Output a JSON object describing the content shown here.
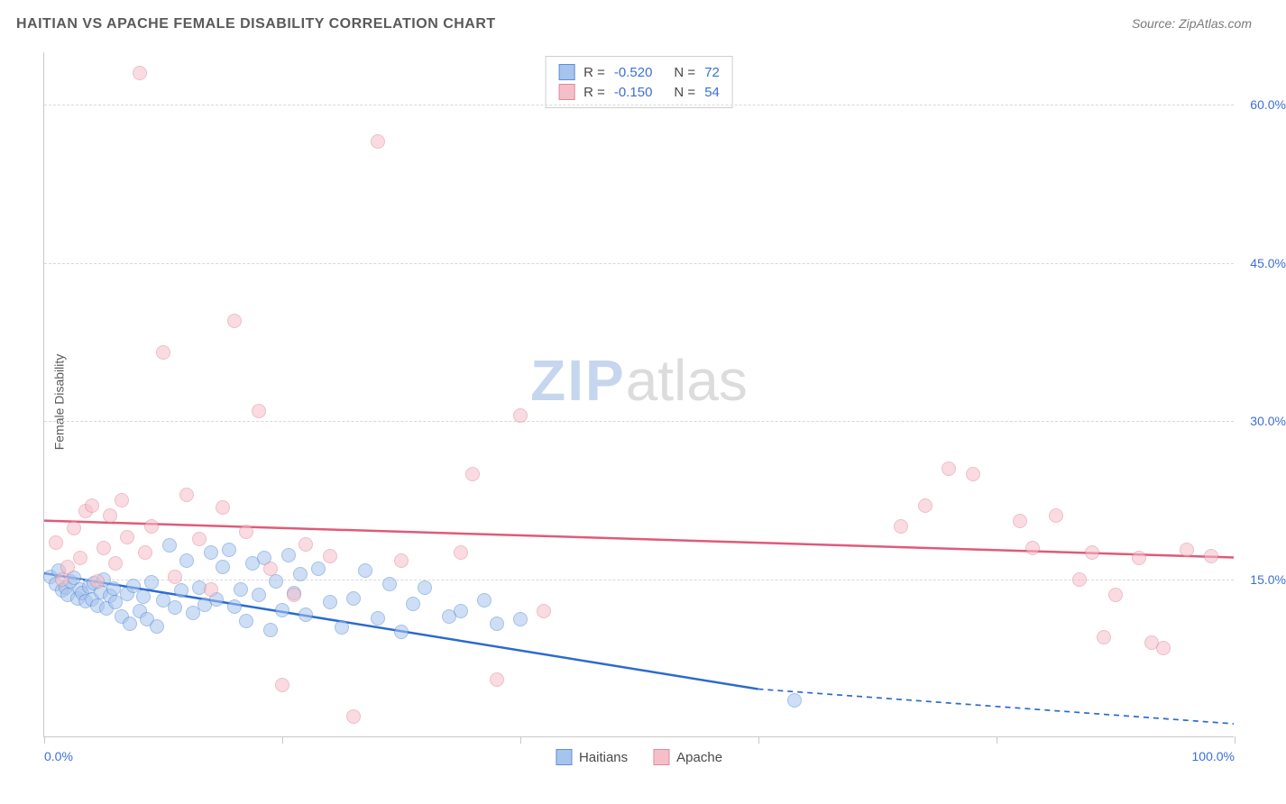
{
  "title": "HAITIAN VS APACHE FEMALE DISABILITY CORRELATION CHART",
  "source": "Source: ZipAtlas.com",
  "y_axis_label": "Female Disability",
  "watermark": {
    "part1": "ZIP",
    "part2": "atlas"
  },
  "chart": {
    "type": "scatter",
    "xlim": [
      0,
      100
    ],
    "ylim": [
      0,
      65
    ],
    "x_ticks": [
      0,
      20,
      40,
      60,
      80,
      100
    ],
    "x_tick_labels": [
      "0.0%",
      "",
      "",
      "",
      "",
      "100.0%"
    ],
    "y_ticks": [
      15,
      30,
      45,
      60
    ],
    "y_tick_labels": [
      "15.0%",
      "30.0%",
      "45.0%",
      "60.0%"
    ],
    "grid_color": "#d8d8d8",
    "axis_color": "#c9c9c9",
    "tick_label_color": "#3b6fd6",
    "background_color": "#ffffff",
    "marker_radius": 8,
    "marker_stroke_width": 1.5,
    "trend_line_width": 2.5
  },
  "series": [
    {
      "name": "Haitians",
      "fill_color": "#a7c4ec",
      "fill_opacity": 0.55,
      "stroke_color": "#5a8fd8",
      "trend_color": "#2b6ad0",
      "trend": {
        "x1": 0,
        "y1": 15.5,
        "x2": 60,
        "y2": 4.5,
        "x_dash_from": 60,
        "x2_dash": 100,
        "y2_dash": 1.2
      },
      "stats": {
        "R": "-0.520",
        "N": "72"
      },
      "points": [
        [
          0.5,
          15.2
        ],
        [
          1,
          14.5
        ],
        [
          1.2,
          15.8
        ],
        [
          1.5,
          13.9
        ],
        [
          1.8,
          14.2
        ],
        [
          2,
          13.5
        ],
        [
          2.2,
          14.8
        ],
        [
          2.5,
          15.1
        ],
        [
          2.8,
          13.2
        ],
        [
          3,
          14.0
        ],
        [
          3.2,
          13.7
        ],
        [
          3.5,
          12.9
        ],
        [
          3.8,
          14.3
        ],
        [
          4,
          13.1
        ],
        [
          4.2,
          14.6
        ],
        [
          4.5,
          12.5
        ],
        [
          4.8,
          13.8
        ],
        [
          5,
          15.0
        ],
        [
          5.2,
          12.2
        ],
        [
          5.5,
          13.4
        ],
        [
          5.8,
          14.1
        ],
        [
          6,
          12.8
        ],
        [
          6.5,
          11.5
        ],
        [
          7,
          13.6
        ],
        [
          7.2,
          10.8
        ],
        [
          7.5,
          14.4
        ],
        [
          8,
          12.0
        ],
        [
          8.3,
          13.3
        ],
        [
          8.6,
          11.2
        ],
        [
          9,
          14.7
        ],
        [
          9.5,
          10.5
        ],
        [
          10,
          13.0
        ],
        [
          10.5,
          18.2
        ],
        [
          11,
          12.3
        ],
        [
          11.5,
          13.9
        ],
        [
          12,
          16.8
        ],
        [
          12.5,
          11.8
        ],
        [
          13,
          14.2
        ],
        [
          13.5,
          12.6
        ],
        [
          14,
          17.5
        ],
        [
          14.5,
          13.1
        ],
        [
          15,
          16.2
        ],
        [
          15.5,
          17.8
        ],
        [
          16,
          12.4
        ],
        [
          16.5,
          14.0
        ],
        [
          17,
          11.0
        ],
        [
          17.5,
          16.5
        ],
        [
          18,
          13.5
        ],
        [
          18.5,
          17.0
        ],
        [
          19,
          10.2
        ],
        [
          19.5,
          14.8
        ],
        [
          20,
          12.1
        ],
        [
          20.5,
          17.3
        ],
        [
          21,
          13.7
        ],
        [
          21.5,
          15.5
        ],
        [
          22,
          11.6
        ],
        [
          23,
          16.0
        ],
        [
          24,
          12.8
        ],
        [
          25,
          10.4
        ],
        [
          26,
          13.2
        ],
        [
          27,
          15.8
        ],
        [
          28,
          11.3
        ],
        [
          29,
          14.5
        ],
        [
          30,
          10.0
        ],
        [
          31,
          12.7
        ],
        [
          32,
          14.2
        ],
        [
          34,
          11.5
        ],
        [
          35,
          12.0
        ],
        [
          37,
          13.0
        ],
        [
          38,
          10.8
        ],
        [
          40,
          11.2
        ],
        [
          63,
          3.5
        ]
      ]
    },
    {
      "name": "Apache",
      "fill_color": "#f5bfca",
      "fill_opacity": 0.55,
      "stroke_color": "#e2899c",
      "trend_color": "#e05a7a",
      "trend": {
        "x1": 0,
        "y1": 20.5,
        "x2": 100,
        "y2": 17.0
      },
      "stats": {
        "R": "-0.150",
        "N": "54"
      },
      "points": [
        [
          1,
          18.5
        ],
        [
          1.5,
          15.0
        ],
        [
          2,
          16.2
        ],
        [
          2.5,
          19.8
        ],
        [
          3,
          17.0
        ],
        [
          3.5,
          21.5
        ],
        [
          4,
          22.0
        ],
        [
          4.5,
          14.8
        ],
        [
          5,
          18.0
        ],
        [
          5.5,
          21.0
        ],
        [
          6,
          16.5
        ],
        [
          6.5,
          22.5
        ],
        [
          7,
          19.0
        ],
        [
          8,
          63.0
        ],
        [
          8.5,
          17.5
        ],
        [
          9,
          20.0
        ],
        [
          10,
          36.5
        ],
        [
          11,
          15.2
        ],
        [
          12,
          23.0
        ],
        [
          13,
          18.8
        ],
        [
          14,
          14.0
        ],
        [
          15,
          21.8
        ],
        [
          16,
          39.5
        ],
        [
          17,
          19.5
        ],
        [
          18,
          31.0
        ],
        [
          19,
          16.0
        ],
        [
          20,
          5.0
        ],
        [
          21,
          13.5
        ],
        [
          22,
          18.3
        ],
        [
          24,
          17.2
        ],
        [
          26,
          2.0
        ],
        [
          28,
          56.5
        ],
        [
          30,
          16.8
        ],
        [
          35,
          17.5
        ],
        [
          36,
          25.0
        ],
        [
          38,
          5.5
        ],
        [
          40,
          30.5
        ],
        [
          42,
          12.0
        ],
        [
          72,
          20.0
        ],
        [
          74,
          22.0
        ],
        [
          76,
          25.5
        ],
        [
          78,
          25.0
        ],
        [
          82,
          20.5
        ],
        [
          83,
          18.0
        ],
        [
          85,
          21.0
        ],
        [
          87,
          15.0
        ],
        [
          88,
          17.5
        ],
        [
          89,
          9.5
        ],
        [
          90,
          13.5
        ],
        [
          92,
          17.0
        ],
        [
          93,
          9.0
        ],
        [
          94,
          8.5
        ],
        [
          96,
          17.8
        ],
        [
          98,
          17.2
        ]
      ]
    }
  ],
  "legend_bottom": [
    {
      "label": "Haitians",
      "fill": "#a7c4ec",
      "stroke": "#5a8fd8"
    },
    {
      "label": "Apache",
      "fill": "#f5bfca",
      "stroke": "#e2899c"
    }
  ]
}
